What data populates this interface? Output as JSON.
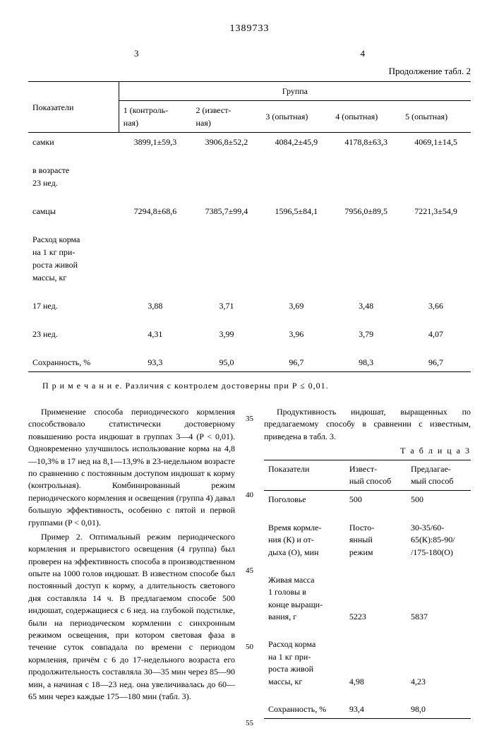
{
  "patent_number": "1389733",
  "page_left": "3",
  "page_right": "4",
  "table2_continuation": "Продолжение табл. 2",
  "table2": {
    "header_indicators": "Показатели",
    "header_group": "Группа",
    "group_labels": [
      "1 (контроль-\nная)",
      "2 (извест-\nная)",
      "3 (опытная)",
      "4 (опытная)",
      "5 (опытная)"
    ],
    "rows": [
      {
        "label": "самки",
        "vals": [
          "3899,1±59,3",
          "3906,8±52,2",
          "4084,2±45,9",
          "4178,8±63,3",
          "4069,1±14,5"
        ]
      },
      {
        "label": "в возрасте\n23 нед.",
        "vals": [
          "",
          "",
          "",
          "",
          ""
        ]
      },
      {
        "label": "самцы",
        "vals": [
          "7294,8±68,6",
          "7385,7±99,4",
          "1596,5±84,1",
          "7956,0±89,5",
          "7221,3±54,9"
        ]
      },
      {
        "label": "Расход корма\nна 1 кг при-\nроста живой\nмассы, кг",
        "vals": [
          "",
          "",
          "",
          "",
          ""
        ]
      },
      {
        "label": "17 нед.",
        "vals": [
          "3,88",
          "3,71",
          "3,69",
          "3,48",
          "3,66"
        ]
      },
      {
        "label": "23 нед.",
        "vals": [
          "4,31",
          "3,99",
          "3,96",
          "3,79",
          "4,07"
        ]
      },
      {
        "label": "Сохранность, %",
        "vals": [
          "93,3",
          "95,0",
          "96,7",
          "98,3",
          "96,7"
        ]
      }
    ]
  },
  "note": "П р и м е ч а н и е. Различия с контролем достоверны при P ≤ 0,01.",
  "left_para1": "Применение способа периодического кормления способствовало статистически достоверному повышению роста индюшат в группах 3—4 (P < 0,01). Одновременно улучшилось использование корма на 4,8—10,3% в 17 нед на 8,1—13,9% в 23-недельном возрасте по сравнению с постоянным доступом индюшат к корму (контрольная). Комбинированный режим периодического кормления и освещения (группа 4) давал большую эффективность, особенно с пятой и первой группами (P < 0,01).",
  "left_para2": "Пример 2. Оптимальный режим периодического кормления и прерывистого освещения (4 группа) был проверен на эффективность способа в производственном опыте на 1000 голов индюшат. В известном способе был постоянный доступ к корму, а длительность светового дня составляла 14 ч. В предлагаемом способе 500 индюшат, содержащиеся с 6 нед. на глубокой подстилке, были на периодическом кормлении с синхронным режимом освещения, при котором световая фаза в течение суток совпадала по времени с периодом кормления, причём с 6 до 17-недельного возраста его продолжительность составляла 30—35 мин через 85—90 мин, а начиная с 18—23 нед. она увеличивалась до 60—65 мин через каждые 175—180 мин (табл. 3).",
  "right_intro": "Продуктивность индюшат, выращенных по предлагаемому способу в сравнении с известным, приведена в табл. 3.",
  "table3_title": "Т а б л и ц а  3",
  "table3": {
    "headers": [
      "Показатели",
      "Извест-\nный способ",
      "Предлагае-\nмый способ"
    ],
    "rows": [
      {
        "label": "Поголовье",
        "v1": "500",
        "v2": "500"
      },
      {
        "label": "Время кормле-\nния (К) и от-\nдыха (О), мин",
        "v1": "Посто-\nянный\nрежим",
        "v2": "30-35/60-\n65(К):85-90/\n/175-180(О)"
      },
      {
        "label": "Живая масса\n1 головы в\nконце выращи-\nвания, г",
        "v1": "5223",
        "v2": "5837"
      },
      {
        "label": "Расход корма\nна 1 кг при-\nроста живой\nмассы, кг",
        "v1": "4,98",
        "v2": "4,23"
      },
      {
        "label": "Сохранность, %",
        "v1": "93,4",
        "v2": "98,0"
      }
    ]
  },
  "line_nums": [
    "35",
    "40",
    "45",
    "50",
    "55"
  ]
}
